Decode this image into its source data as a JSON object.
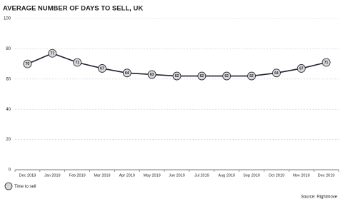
{
  "chart_data": {
    "type": "line",
    "title": "AVERAGE NUMBER OF DAYS TO SELL, UK",
    "categories": [
      "Dec 2018",
      "Jan 2019",
      "Feb 2019",
      "Mar 2019",
      "Apr 2019",
      "May 2019",
      "Jun 2019",
      "Jul 2019",
      "Aug 2019",
      "Sep 2019",
      "Oct 2019",
      "Nov 2019",
      "Dec 2019"
    ],
    "series": [
      {
        "name": "Time to sell",
        "color": "#1f2233",
        "marker_color": "#d9d9d9",
        "values": [
          70,
          77,
          71,
          67,
          64,
          63,
          62,
          62,
          62,
          62,
          64,
          67,
          71
        ]
      }
    ],
    "ylim": [
      0,
      100
    ],
    "yticks": [
      0,
      20,
      40,
      60,
      80,
      100
    ],
    "grid": true,
    "legend": "bottom-left",
    "source": "Source: Rightmove"
  }
}
